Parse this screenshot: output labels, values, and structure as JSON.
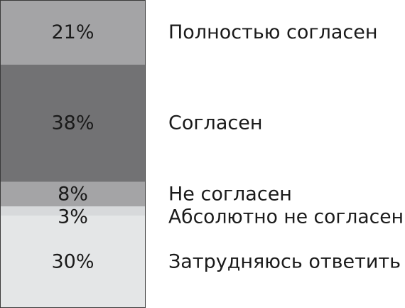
{
  "chart_data": {
    "type": "bar",
    "stacked": true,
    "orientation": "vertical",
    "value_unit": "%",
    "segments": [
      {
        "label": "Полностью согласен",
        "value": 21,
        "value_label": "21%",
        "color": "#a4a4a6"
      },
      {
        "label": "Согласен",
        "value": 38,
        "value_label": "38%",
        "color": "#727274"
      },
      {
        "label": "Не согласен",
        "value": 8,
        "value_label": "8%",
        "color": "#a4a4a6"
      },
      {
        "label": "Абсолютно не согласен",
        "value": 3,
        "value_label": "3%",
        "color": "#d7d9db"
      },
      {
        "label": "Затрудняюсь ответить",
        "value": 30,
        "value_label": "30%",
        "color": "#e4e6e7"
      }
    ],
    "outline_color": "#3a3a3a",
    "grid": false,
    "legend": "none"
  }
}
